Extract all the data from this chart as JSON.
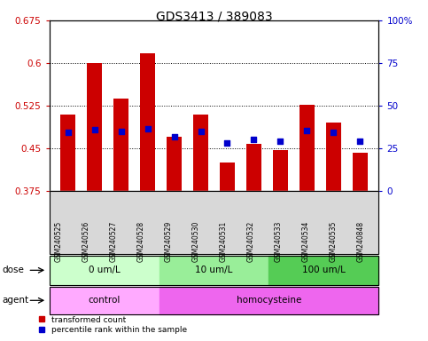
{
  "title": "GDS3413 / 389083",
  "samples": [
    "GSM240525",
    "GSM240526",
    "GSM240527",
    "GSM240528",
    "GSM240529",
    "GSM240530",
    "GSM240531",
    "GSM240532",
    "GSM240533",
    "GSM240534",
    "GSM240535",
    "GSM240848"
  ],
  "bar_values": [
    0.51,
    0.6,
    0.537,
    0.617,
    0.47,
    0.51,
    0.425,
    0.458,
    0.447,
    0.527,
    0.495,
    0.443
  ],
  "blue_dot_values": [
    0.478,
    0.483,
    0.48,
    0.484,
    0.471,
    0.48,
    0.46,
    0.465,
    0.462,
    0.481,
    0.478,
    0.462
  ],
  "bar_bottom": 0.375,
  "ylim_left": [
    0.375,
    0.675
  ],
  "ylim_right": [
    0,
    100
  ],
  "yticks_left": [
    0.375,
    0.45,
    0.525,
    0.6,
    0.675
  ],
  "yticks_right": [
    0,
    25,
    50,
    75,
    100
  ],
  "bar_color": "#cc0000",
  "dot_color": "#0000cc",
  "dose_groups": [
    {
      "label": "0 um/L",
      "start": 0,
      "end": 4,
      "color": "#ccffcc"
    },
    {
      "label": "10 um/L",
      "start": 4,
      "end": 8,
      "color": "#99ee99"
    },
    {
      "label": "100 um/L",
      "start": 8,
      "end": 12,
      "color": "#55cc55"
    }
  ],
  "agent_groups": [
    {
      "label": "control",
      "start": 0,
      "end": 4,
      "color": "#ffaaff"
    },
    {
      "label": "homocysteine",
      "start": 4,
      "end": 12,
      "color": "#ee66ee"
    }
  ],
  "dose_label": "dose",
  "agent_label": "agent",
  "legend_bar_label": "transformed count",
  "legend_dot_label": "percentile rank within the sample",
  "left_tick_color": "#cc0000",
  "right_tick_color": "#0000cc",
  "background_color": "#ffffff",
  "xtick_bg_color": "#d8d8d8",
  "plot_bg_color": "#ffffff"
}
